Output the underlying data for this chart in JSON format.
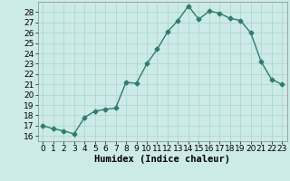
{
  "x": [
    0,
    1,
    2,
    3,
    4,
    5,
    6,
    7,
    8,
    9,
    10,
    11,
    12,
    13,
    14,
    15,
    16,
    17,
    18,
    19,
    20,
    21,
    22,
    23
  ],
  "y": [
    17.0,
    16.7,
    16.5,
    16.2,
    17.8,
    18.4,
    18.6,
    18.7,
    21.2,
    21.1,
    23.0,
    24.4,
    26.1,
    27.2,
    28.6,
    27.3,
    28.1,
    27.9,
    27.4,
    27.2,
    26.0,
    23.2,
    21.5,
    21.0
  ],
  "line_color": "#2e7d6e",
  "marker": "D",
  "marker_size": 2.5,
  "bg_color": "#cceae7",
  "grid_color": "#aad4d0",
  "xlabel": "Humidex (Indice chaleur)",
  "xlim": [
    -0.5,
    23.5
  ],
  "ylim": [
    15.5,
    29.0
  ],
  "yticks": [
    16,
    17,
    18,
    19,
    20,
    21,
    22,
    23,
    24,
    25,
    26,
    27,
    28
  ],
  "xticks": [
    0,
    1,
    2,
    3,
    4,
    5,
    6,
    7,
    8,
    9,
    10,
    11,
    12,
    13,
    14,
    15,
    16,
    17,
    18,
    19,
    20,
    21,
    22,
    23
  ],
  "tick_fontsize": 6.5,
  "xlabel_fontsize": 7.5,
  "linewidth": 1.0
}
